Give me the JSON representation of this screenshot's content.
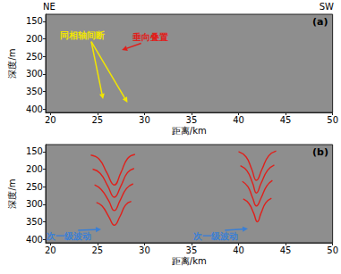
{
  "chart_data": [
    {
      "type": "line",
      "title": "(a)",
      "corner_labels": [
        "NE",
        "SW"
      ],
      "x_label": "距离/km",
      "y_label": "深度/m",
      "xlim": [
        19.5,
        50
      ],
      "xticks": [
        20,
        25,
        30,
        35,
        40,
        45,
        50
      ],
      "ylim": [
        130,
        410
      ],
      "yticks": [
        150,
        200,
        250,
        300,
        350,
        400
      ],
      "series": [],
      "annotations": [
        {
          "text": "同相轴间断",
          "color": "#f2e600",
          "x": 23.4,
          "y": 190,
          "arrow_to": [
            [
              25.6,
              372
            ],
            [
              28.2,
              382
            ]
          ]
        },
        {
          "text": "垂向叠置",
          "color": "#e0201b",
          "x": 30.6,
          "y": 195,
          "arrow_to": [
            [
              27.6,
              232
            ]
          ]
        }
      ]
    },
    {
      "type": "line",
      "title": "(b)",
      "x_label": "距离/km",
      "y_label": "深度/m",
      "xlim": [
        19.5,
        50
      ],
      "xticks": [
        20,
        25,
        30,
        35,
        40,
        45,
        50
      ],
      "ylim": [
        130,
        410
      ],
      "yticks": [
        150,
        200,
        250,
        300,
        350,
        400
      ],
      "series": [
        {
          "color": "#e0201b",
          "values": [
            [
              24.3,
              160
            ],
            [
              25.2,
              172
            ],
            [
              26.0,
              210
            ],
            [
              26.8,
              245
            ],
            [
              27.5,
              210
            ],
            [
              28.2,
              170
            ],
            [
              29.0,
              158
            ]
          ]
        },
        {
          "color": "#e0201b",
          "values": [
            [
              24.5,
              200
            ],
            [
              25.3,
              212
            ],
            [
              26.1,
              248
            ],
            [
              26.8,
              280
            ],
            [
              27.5,
              248
            ],
            [
              28.2,
              210
            ],
            [
              28.9,
              198
            ]
          ]
        },
        {
          "color": "#e0201b",
          "values": [
            [
              24.7,
              245
            ],
            [
              25.4,
              258
            ],
            [
              26.2,
              290
            ],
            [
              26.8,
              318
            ],
            [
              27.4,
              290
            ],
            [
              28.1,
              255
            ],
            [
              28.8,
              242
            ]
          ]
        },
        {
          "color": "#e0201b",
          "values": [
            [
              24.9,
              295
            ],
            [
              25.5,
              305
            ],
            [
              26.2,
              335
            ],
            [
              26.8,
              360
            ],
            [
              27.4,
              335
            ],
            [
              28.0,
              302
            ],
            [
              28.6,
              292
            ]
          ]
        },
        {
          "color": "#e0201b",
          "values": [
            [
              40.0,
              150
            ],
            [
              40.8,
              165
            ],
            [
              41.4,
              200
            ],
            [
              41.9,
              232
            ],
            [
              42.5,
              200
            ],
            [
              43.2,
              162
            ],
            [
              44.0,
              148
            ]
          ]
        },
        {
          "color": "#e0201b",
          "values": [
            [
              40.2,
              190
            ],
            [
              40.9,
              205
            ],
            [
              41.5,
              240
            ],
            [
              41.9,
              268
            ],
            [
              42.4,
              240
            ],
            [
              43.1,
              203
            ],
            [
              43.8,
              188
            ]
          ]
        },
        {
          "color": "#e0201b",
          "values": [
            [
              40.4,
              235
            ],
            [
              41.0,
              250
            ],
            [
              41.5,
              282
            ],
            [
              41.9,
              305
            ],
            [
              42.4,
              282
            ],
            [
              43.0,
              248
            ],
            [
              43.6,
              232
            ]
          ]
        },
        {
          "color": "#e0201b",
          "values": [
            [
              40.5,
              285
            ],
            [
              41.1,
              298
            ],
            [
              41.6,
              325
            ],
            [
              42.0,
              350
            ],
            [
              42.4,
              325
            ],
            [
              42.9,
              296
            ],
            [
              43.5,
              283
            ]
          ]
        }
      ],
      "annotations": [
        {
          "text": "次一级波动",
          "color": "#3a7fd5",
          "x": 22.0,
          "y": 392,
          "arrow_to": [
            [
              25.4,
              372
            ]
          ]
        },
        {
          "text": "次一级波动",
          "color": "#3a7fd5",
          "x": 37.6,
          "y": 392,
          "arrow_to": [
            [
              41.0,
              370
            ]
          ]
        }
      ]
    }
  ]
}
